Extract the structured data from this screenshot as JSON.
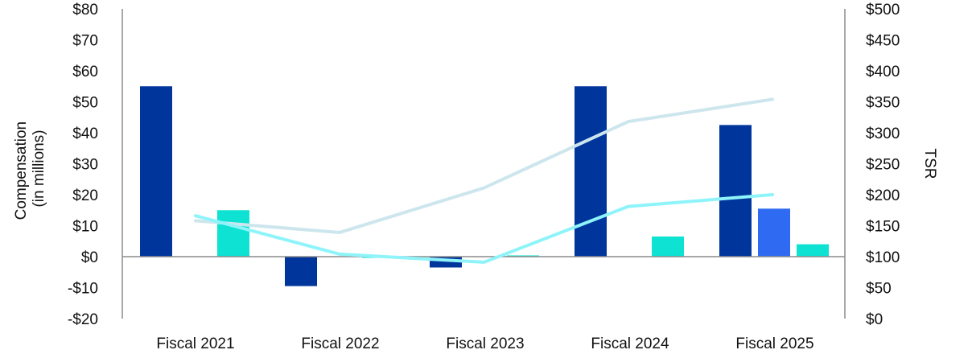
{
  "chart_data": {
    "type": "bar",
    "categories": [
      "Fiscal 2021",
      "Fiscal 2022",
      "Fiscal 2023",
      "Fiscal 2024",
      "Fiscal 2025"
    ],
    "left_axis": {
      "label_line1": "Compensation",
      "label_line2": "(in millions)",
      "range": [
        -20,
        80
      ],
      "ticks": [
        {
          "value": 80,
          "label": "$80"
        },
        {
          "value": 70,
          "label": "$70"
        },
        {
          "value": 60,
          "label": "$60"
        },
        {
          "value": 50,
          "label": "$50"
        },
        {
          "value": 40,
          "label": "$40"
        },
        {
          "value": 30,
          "label": "$30"
        },
        {
          "value": 20,
          "label": "$20"
        },
        {
          "value": 10,
          "label": "$10"
        },
        {
          "value": 0,
          "label": "$0"
        },
        {
          "value": -10,
          "label": "-$10"
        },
        {
          "value": -20,
          "label": "-$20"
        }
      ]
    },
    "right_axis": {
      "label": "TSR",
      "range": [
        0,
        500
      ],
      "ticks": [
        {
          "value": 500,
          "label": "$500"
        },
        {
          "value": 450,
          "label": "$450"
        },
        {
          "value": 400,
          "label": "$400"
        },
        {
          "value": 350,
          "label": "$350"
        },
        {
          "value": 300,
          "label": "$300"
        },
        {
          "value": 250,
          "label": "$250"
        },
        {
          "value": 200,
          "label": "$200"
        },
        {
          "value": 150,
          "label": "$150"
        },
        {
          "value": 100,
          "label": "$100"
        },
        {
          "value": 50,
          "label": "$50"
        },
        {
          "value": 0,
          "label": "$0"
        }
      ]
    },
    "bar_series": [
      {
        "name": "series-1",
        "color": "#00359c",
        "values": [
          55,
          -9.5,
          -3.5,
          55,
          42.5
        ]
      },
      {
        "name": "series-2",
        "color": "#2e6bf2",
        "values": [
          null,
          null,
          null,
          null,
          15.5
        ]
      },
      {
        "name": "series-3",
        "color": "#0ee2d2",
        "values": [
          15,
          -0.4,
          0.4,
          6.5,
          4
        ]
      }
    ],
    "line_series": [
      {
        "name": "line-1",
        "color": "#cde6ee",
        "axis": "right",
        "values": [
          158,
          139,
          211,
          318,
          354
        ]
      },
      {
        "name": "line-2",
        "color": "#8ff4fa",
        "axis": "right",
        "values": [
          166,
          104,
          91,
          181,
          200
        ]
      }
    ]
  }
}
